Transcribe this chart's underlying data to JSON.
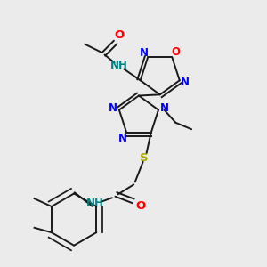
{
  "bg_color": "#ebebeb",
  "bond_color": "#1a1a1a",
  "N_color": "#0000ff",
  "O_color": "#ff0000",
  "S_color": "#aaaa00",
  "H_color": "#008080",
  "lw": 1.4,
  "dbo": 0.013,
  "fs": 8.5,
  "figsize": [
    3.0,
    3.0
  ],
  "dpi": 100,
  "xlim": [
    0,
    1
  ],
  "ylim": [
    0,
    1
  ]
}
